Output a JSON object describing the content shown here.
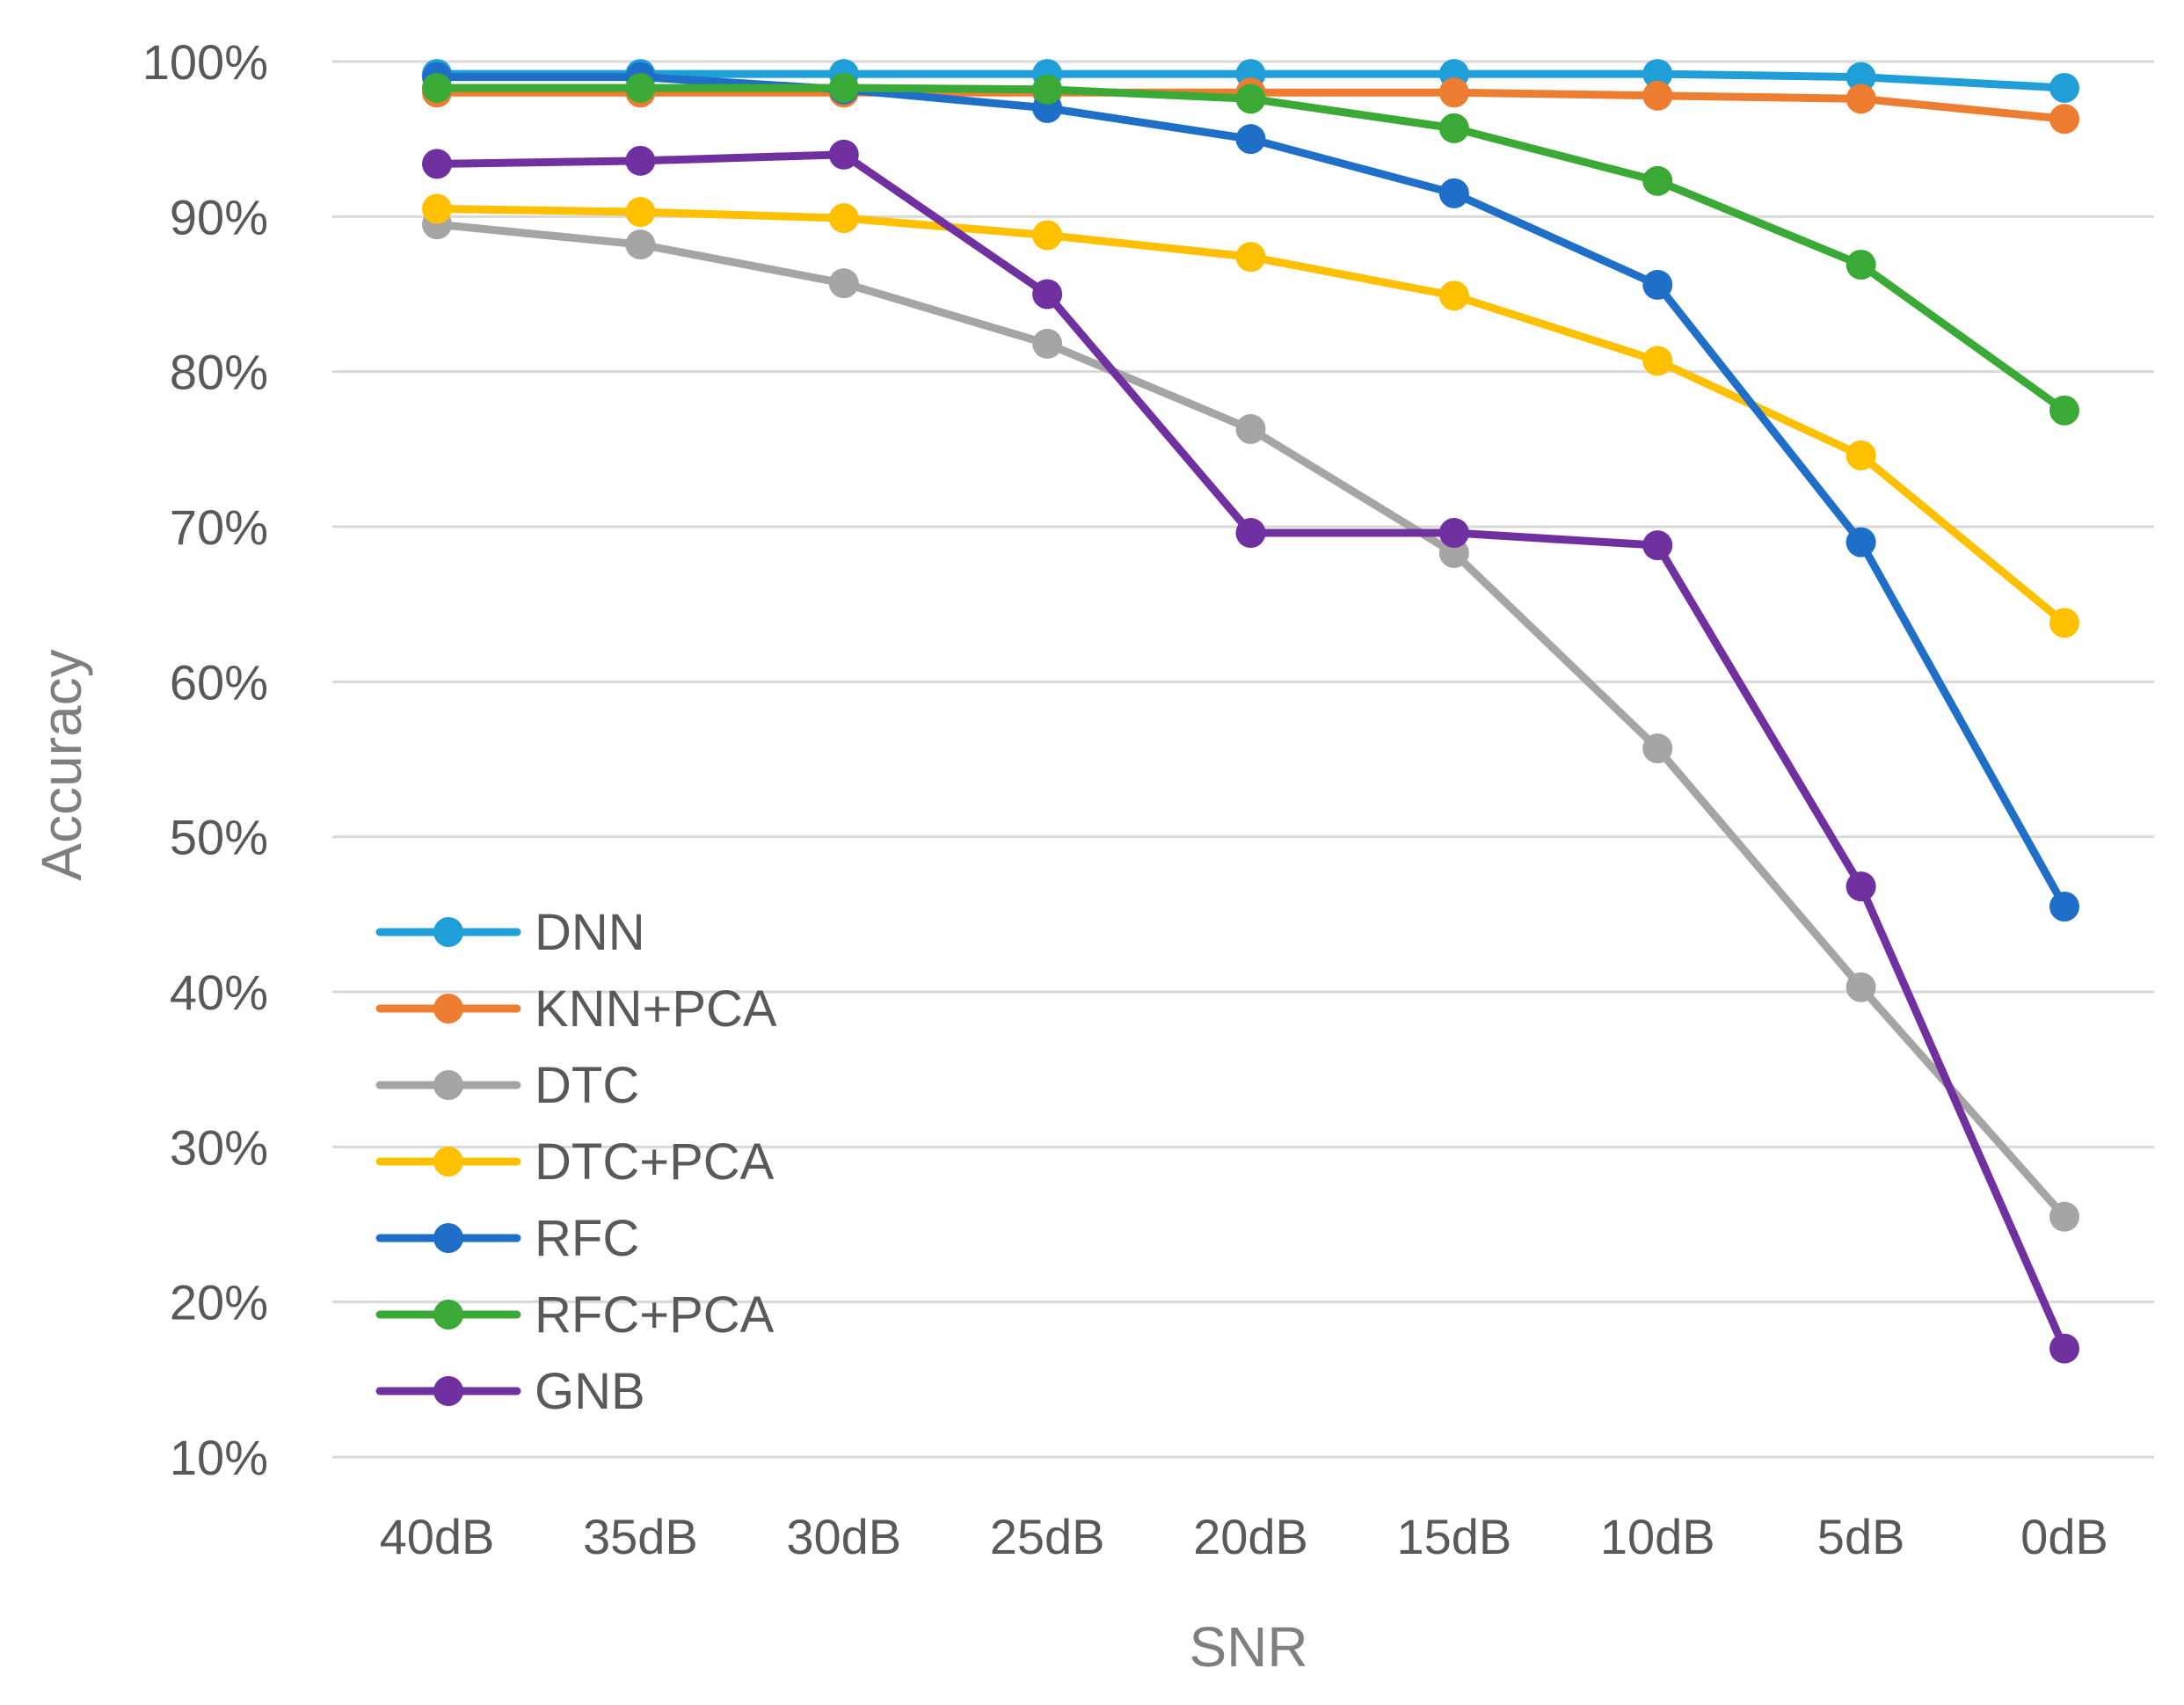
{
  "chart_data": {
    "type": "line",
    "title": "",
    "xlabel": "SNR",
    "ylabel": "Accuracy",
    "categories": [
      "40dB",
      "35dB",
      "30dB",
      "25dB",
      "20dB",
      "15dB",
      "10dB",
      "5dB",
      "0dB"
    ],
    "ylim": [
      10,
      100
    ],
    "yticks": [
      10,
      20,
      30,
      40,
      50,
      60,
      70,
      80,
      90,
      100
    ],
    "ytick_labels": [
      "10%",
      "20%",
      "30%",
      "40%",
      "50%",
      "60%",
      "70%",
      "80%",
      "90%",
      "100%"
    ],
    "grid": true,
    "legend_position": "bottom-left",
    "series": [
      {
        "name": "DNN",
        "color": "#1f9ed8",
        "values": [
          99.2,
          99.2,
          99.2,
          99.2,
          99.2,
          99.2,
          99.2,
          99.0,
          98.3
        ]
      },
      {
        "name": "KNN+PCA",
        "color": "#ed7d31",
        "values": [
          98.0,
          98.0,
          98.0,
          98.0,
          98.0,
          98.0,
          97.8,
          97.6,
          96.3
        ]
      },
      {
        "name": "DTC",
        "color": "#a5a5a5",
        "values": [
          89.5,
          88.2,
          85.7,
          81.8,
          76.3,
          68.3,
          55.7,
          40.3,
          25.5
        ]
      },
      {
        "name": "DTC+PCA",
        "color": "#ffc000",
        "values": [
          90.5,
          90.3,
          89.9,
          88.8,
          87.4,
          84.9,
          80.7,
          74.6,
          63.8
        ]
      },
      {
        "name": "RFC",
        "color": "#1f6fc8",
        "values": [
          99.0,
          99.0,
          98.2,
          97.0,
          95.0,
          91.5,
          85.6,
          69.0,
          45.5
        ]
      },
      {
        "name": "RFC+PCA",
        "color": "#3aa935",
        "values": [
          98.3,
          98.3,
          98.3,
          98.2,
          97.6,
          95.7,
          92.3,
          86.9,
          77.5
        ]
      },
      {
        "name": "GNB",
        "color": "#7030a0",
        "values": [
          93.4,
          93.6,
          94.0,
          85.0,
          69.6,
          69.6,
          68.8,
          46.8,
          17.0
        ]
      }
    ]
  }
}
